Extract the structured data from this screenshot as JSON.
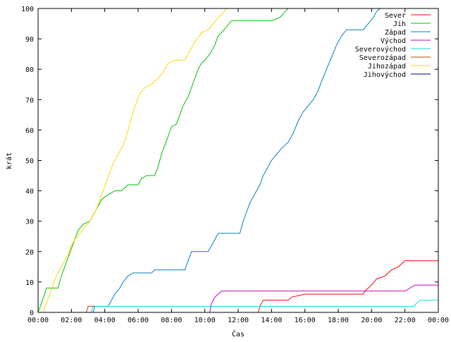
{
  "chart_data": {
    "type": "line",
    "title": "",
    "xlabel": "Čas",
    "ylabel": "krát",
    "xlim": [
      0,
      24
    ],
    "ylim": [
      0,
      100
    ],
    "x_ticks": [
      "00:00",
      "02:00",
      "04:00",
      "06:00",
      "08:00",
      "10:00",
      "12:00",
      "14:00",
      "16:00",
      "18:00",
      "20:00",
      "22:00",
      "00:00"
    ],
    "y_ticks": [
      "0",
      "10",
      "20",
      "30",
      "40",
      "50",
      "60",
      "70",
      "80",
      "90",
      "100"
    ],
    "grid": false,
    "legend_position": "top-right",
    "series": [
      {
        "name": "Sever",
        "color": "#ff0000",
        "points": [
          [
            13.2,
            0
          ],
          [
            13.3,
            2
          ],
          [
            13.5,
            4
          ],
          [
            15.0,
            4
          ],
          [
            15.2,
            5
          ],
          [
            16.0,
            6
          ],
          [
            19.5,
            6
          ],
          [
            19.6,
            7
          ],
          [
            19.8,
            8
          ],
          [
            20.0,
            9
          ],
          [
            20.3,
            11
          ],
          [
            20.8,
            12
          ],
          [
            21.0,
            13
          ],
          [
            21.2,
            14
          ],
          [
            21.6,
            15
          ],
          [
            21.8,
            16
          ],
          [
            22.0,
            17
          ],
          [
            24.0,
            17
          ]
        ]
      },
      {
        "name": "Jih",
        "color": "#00c000",
        "points": [
          [
            0,
            0
          ],
          [
            0.2,
            3
          ],
          [
            0.4,
            6
          ],
          [
            0.5,
            8
          ],
          [
            1.2,
            8
          ],
          [
            1.4,
            12
          ],
          [
            1.6,
            15
          ],
          [
            1.8,
            18
          ],
          [
            2.0,
            21
          ],
          [
            2.2,
            24
          ],
          [
            2.4,
            27
          ],
          [
            2.7,
            29
          ],
          [
            3.1,
            30
          ],
          [
            3.4,
            33
          ],
          [
            3.6,
            35
          ],
          [
            3.8,
            37
          ],
          [
            4.0,
            38
          ],
          [
            4.3,
            39
          ],
          [
            4.6,
            40
          ],
          [
            5.0,
            40
          ],
          [
            5.2,
            41
          ],
          [
            5.4,
            42
          ],
          [
            6.0,
            42
          ],
          [
            6.2,
            44
          ],
          [
            6.5,
            45
          ],
          [
            7.0,
            45
          ],
          [
            7.2,
            48
          ],
          [
            7.4,
            52
          ],
          [
            7.6,
            55
          ],
          [
            7.8,
            58
          ],
          [
            8.0,
            61
          ],
          [
            8.3,
            62
          ],
          [
            8.5,
            65
          ],
          [
            8.7,
            68
          ],
          [
            9.0,
            71
          ],
          [
            9.2,
            74
          ],
          [
            9.4,
            77
          ],
          [
            9.6,
            80
          ],
          [
            9.8,
            82
          ],
          [
            10.0,
            83
          ],
          [
            10.3,
            85
          ],
          [
            10.6,
            88
          ],
          [
            10.8,
            91
          ],
          [
            11.0,
            92
          ],
          [
            11.3,
            94
          ],
          [
            11.6,
            96
          ],
          [
            12.0,
            96
          ],
          [
            14.0,
            96
          ],
          [
            14.5,
            97
          ],
          [
            14.8,
            99
          ],
          [
            15.0,
            100
          ]
        ]
      },
      {
        "name": "Západ",
        "color": "#0080c0",
        "points": [
          [
            3.3,
            0
          ],
          [
            3.4,
            2
          ],
          [
            4.2,
            2
          ],
          [
            4.3,
            3
          ],
          [
            4.6,
            6
          ],
          [
            4.9,
            8
          ],
          [
            5.1,
            10
          ],
          [
            5.4,
            12
          ],
          [
            5.7,
            13
          ],
          [
            6.8,
            13
          ],
          [
            7.0,
            14
          ],
          [
            8.8,
            14
          ],
          [
            9.0,
            17
          ],
          [
            9.2,
            20
          ],
          [
            10.2,
            20
          ],
          [
            10.4,
            22
          ],
          [
            10.6,
            24
          ],
          [
            10.8,
            26
          ],
          [
            12.1,
            26
          ],
          [
            12.3,
            30
          ],
          [
            12.5,
            33
          ],
          [
            12.7,
            36
          ],
          [
            13.0,
            39
          ],
          [
            13.3,
            42
          ],
          [
            13.5,
            45
          ],
          [
            13.8,
            48
          ],
          [
            14.0,
            50
          ],
          [
            14.3,
            52
          ],
          [
            14.6,
            54
          ],
          [
            15.0,
            56
          ],
          [
            15.3,
            59
          ],
          [
            15.6,
            63
          ],
          [
            15.9,
            66
          ],
          [
            16.2,
            68
          ],
          [
            16.5,
            70
          ],
          [
            16.8,
            73
          ],
          [
            17.0,
            76
          ],
          [
            17.3,
            80
          ],
          [
            17.6,
            84
          ],
          [
            17.9,
            88
          ],
          [
            18.2,
            91
          ],
          [
            18.5,
            93
          ],
          [
            19.5,
            93
          ],
          [
            19.8,
            95
          ],
          [
            20.1,
            97
          ],
          [
            20.3,
            99
          ],
          [
            20.5,
            100
          ]
        ]
      },
      {
        "name": "Východ",
        "color": "#c000c0",
        "points": [
          [
            10.3,
            0
          ],
          [
            10.4,
            3
          ],
          [
            10.6,
            5
          ],
          [
            10.8,
            6
          ],
          [
            11.0,
            7
          ],
          [
            19.0,
            7
          ],
          [
            22.0,
            7
          ],
          [
            22.3,
            8
          ],
          [
            22.6,
            9
          ],
          [
            24.0,
            9
          ]
        ]
      },
      {
        "name": "Severovýchod",
        "color": "#00e0e0",
        "points": [
          [
            3.2,
            0
          ],
          [
            3.3,
            2
          ],
          [
            22.5,
            2
          ],
          [
            22.7,
            3
          ],
          [
            22.9,
            4
          ],
          [
            24.0,
            4
          ]
        ]
      },
      {
        "name": "Severozápad",
        "color": "#c04000",
        "points": [
          [
            2.9,
            0
          ],
          [
            3.0,
            2
          ],
          [
            3.4,
            2
          ]
        ]
      },
      {
        "name": "Jihozápad",
        "color": "#ffd700",
        "points": [
          [
            0.3,
            0
          ],
          [
            0.5,
            3
          ],
          [
            0.7,
            6
          ],
          [
            0.9,
            9
          ],
          [
            1.1,
            12
          ],
          [
            1.3,
            14
          ],
          [
            1.5,
            16
          ],
          [
            1.8,
            19
          ],
          [
            2.0,
            22
          ],
          [
            2.2,
            24
          ],
          [
            2.5,
            26
          ],
          [
            2.8,
            28
          ],
          [
            3.1,
            30
          ],
          [
            3.3,
            32
          ],
          [
            3.5,
            34
          ],
          [
            3.7,
            37
          ],
          [
            3.9,
            40
          ],
          [
            4.1,
            43
          ],
          [
            4.3,
            46
          ],
          [
            4.5,
            49
          ],
          [
            4.8,
            52
          ],
          [
            5.1,
            55
          ],
          [
            5.3,
            58
          ],
          [
            5.5,
            62
          ],
          [
            5.7,
            66
          ],
          [
            5.9,
            69
          ],
          [
            6.1,
            72
          ],
          [
            6.4,
            74
          ],
          [
            6.8,
            75
          ],
          [
            7.2,
            77
          ],
          [
            7.5,
            79
          ],
          [
            7.8,
            82
          ],
          [
            8.2,
            83
          ],
          [
            8.8,
            83
          ],
          [
            9.1,
            86
          ],
          [
            9.4,
            89
          ],
          [
            9.8,
            92
          ],
          [
            10.2,
            93
          ],
          [
            10.5,
            95
          ],
          [
            10.8,
            97
          ],
          [
            11.0,
            98
          ],
          [
            11.3,
            100
          ]
        ]
      },
      {
        "name": "Jihovýchod",
        "color": "#000080",
        "points": []
      }
    ]
  }
}
